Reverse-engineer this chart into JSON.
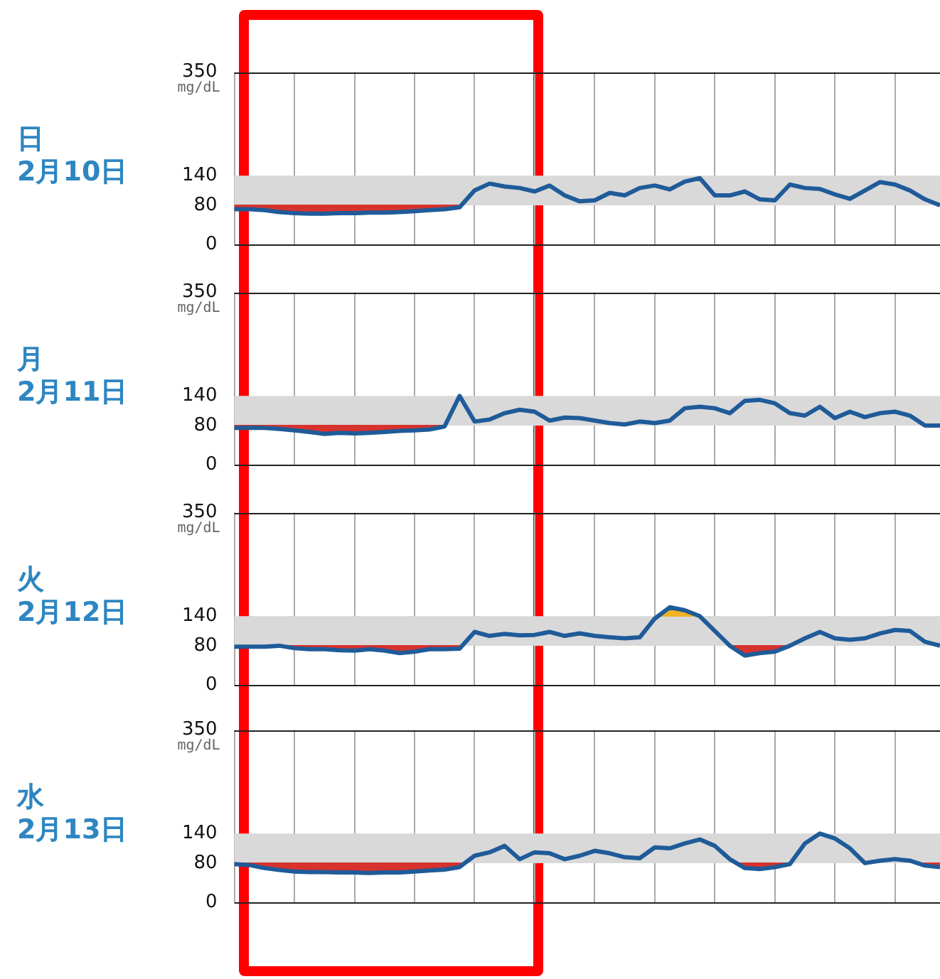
{
  "chart_data": [
    {
      "type": "line",
      "title": "日",
      "subtitle": "2月10日",
      "ylabel": "mg/dL",
      "categories": [
        null,
        null,
        null,
        null,
        null,
        null,
        null,
        null,
        null,
        null,
        null,
        null,
        null,
        null,
        null,
        null,
        null,
        null,
        null,
        null,
        null,
        null,
        null,
        null,
        null,
        null,
        null,
        null,
        null,
        null,
        null,
        null,
        null,
        null,
        null,
        null,
        null,
        null,
        null,
        null,
        null,
        null,
        null,
        null,
        null,
        null,
        null,
        null
      ],
      "series": [
        {
          "color": "#1f5b99",
          "values": [
            72,
            72,
            70,
            66,
            64,
            63,
            63,
            64,
            64,
            65,
            65,
            66,
            68,
            70,
            72,
            76,
            110,
            124,
            118,
            115,
            108,
            120,
            100,
            88,
            90,
            105,
            100,
            115,
            120,
            112,
            128,
            135,
            100,
            100,
            108,
            92,
            90,
            122,
            115,
            113,
            102,
            93,
            110,
            127,
            122,
            110,
            92,
            80
          ]
        }
      ],
      "ylim": [
        0,
        350
      ],
      "yticks": [
        0,
        80,
        140,
        350
      ],
      "bands": [
        {
          "axis": "y",
          "from": 80,
          "to": 140,
          "color": "#d9d9d9"
        }
      ],
      "grid": "x",
      "tick_labels": "y",
      "legend": false,
      "marker": "none"
    },
    {
      "type": "line",
      "title": "月",
      "subtitle": "2月11日",
      "ylabel": "mg/dL",
      "categories": [
        null,
        null,
        null,
        null,
        null,
        null,
        null,
        null,
        null,
        null,
        null,
        null,
        null,
        null,
        null,
        null,
        null,
        null,
        null,
        null,
        null,
        null,
        null,
        null,
        null,
        null,
        null,
        null,
        null,
        null,
        null,
        null,
        null,
        null,
        null,
        null,
        null,
        null,
        null,
        null,
        null,
        null,
        null,
        null,
        null,
        null,
        null,
        null
      ],
      "series": [
        {
          "color": "#1f5b99",
          "values": [
            75,
            75,
            75,
            73,
            70,
            67,
            63,
            65,
            64,
            65,
            67,
            69,
            70,
            72,
            78,
            140,
            88,
            92,
            105,
            112,
            108,
            90,
            96,
            95,
            90,
            85,
            82,
            88,
            85,
            90,
            115,
            118,
            115,
            105,
            130,
            132,
            125,
            105,
            100,
            118,
            95,
            108,
            97,
            105,
            108,
            100,
            80,
            80
          ]
        }
      ],
      "ylim": [
        0,
        350
      ],
      "yticks": [
        0,
        80,
        140,
        350
      ],
      "bands": [
        {
          "axis": "y",
          "from": 80,
          "to": 140,
          "color": "#d9d9d9"
        }
      ],
      "grid": "x",
      "tick_labels": "y",
      "legend": false,
      "marker": "none"
    },
    {
      "type": "line",
      "title": "火",
      "subtitle": "2月12日",
      "ylabel": "mg/dL",
      "categories": [
        null,
        null,
        null,
        null,
        null,
        null,
        null,
        null,
        null,
        null,
        null,
        null,
        null,
        null,
        null,
        null,
        null,
        null,
        null,
        null,
        null,
        null,
        null,
        null,
        null,
        null,
        null,
        null,
        null,
        null,
        null,
        null,
        null,
        null,
        null,
        null,
        null,
        null,
        null,
        null,
        null,
        null,
        null,
        null,
        null,
        null,
        null,
        null
      ],
      "series": [
        {
          "color": "#1f5b99",
          "values": [
            78,
            78,
            78,
            80,
            75,
            73,
            73,
            71,
            70,
            73,
            70,
            65,
            68,
            73,
            73,
            74,
            108,
            100,
            104,
            101,
            102,
            108,
            100,
            105,
            100,
            97,
            95,
            97,
            135,
            158,
            152,
            140,
            110,
            80,
            60,
            65,
            68,
            80,
            95,
            108,
            95,
            92,
            95,
            105,
            112,
            110,
            88,
            80
          ]
        }
      ],
      "ylim": [
        0,
        350
      ],
      "yticks": [
        0,
        80,
        140,
        350
      ],
      "bands": [
        {
          "axis": "y",
          "from": 80,
          "to": 140,
          "color": "#d9d9d9"
        }
      ],
      "grid": "x",
      "tick_labels": "y",
      "legend": false,
      "marker": "none"
    },
    {
      "type": "line",
      "title": "水",
      "subtitle": "2月13日",
      "ylabel": "mg/dL",
      "categories": [
        null,
        null,
        null,
        null,
        null,
        null,
        null,
        null,
        null,
        null,
        null,
        null,
        null,
        null,
        null,
        null,
        null,
        null,
        null,
        null,
        null,
        null,
        null,
        null,
        null,
        null,
        null,
        null,
        null,
        null,
        null,
        null,
        null,
        null,
        null,
        null,
        null,
        null,
        null,
        null,
        null,
        null,
        null,
        null,
        null,
        null,
        null,
        null
      ],
      "series": [
        {
          "color": "#1f5b99",
          "values": [
            78,
            76,
            70,
            66,
            63,
            62,
            62,
            61,
            61,
            60,
            61,
            61,
            63,
            65,
            67,
            72,
            95,
            102,
            115,
            88,
            102,
            100,
            88,
            95,
            105,
            100,
            92,
            90,
            112,
            110,
            120,
            128,
            115,
            88,
            70,
            68,
            72,
            78,
            120,
            140,
            130,
            110,
            80,
            85,
            88,
            85,
            75,
            72
          ]
        }
      ],
      "ylim": [
        0,
        350
      ],
      "yticks": [
        0,
        80,
        140,
        350
      ],
      "bands": [
        {
          "axis": "y",
          "from": 80,
          "to": 140,
          "color": "#d9d9d9"
        }
      ],
      "grid": "x",
      "tick_labels": "y",
      "legend": false,
      "marker": "none"
    }
  ]
}
